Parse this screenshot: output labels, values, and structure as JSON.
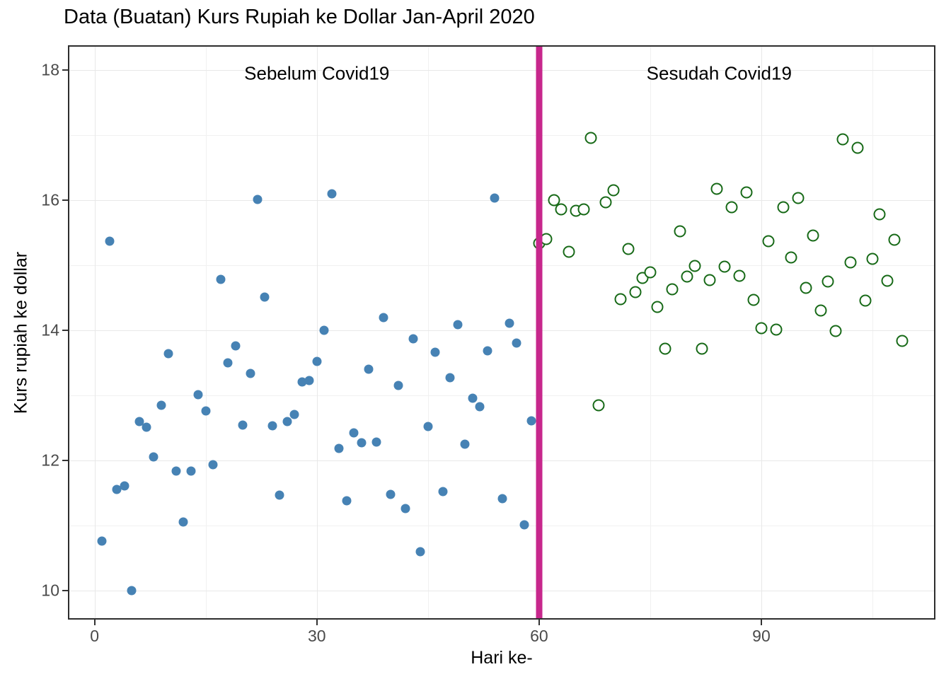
{
  "page": {
    "background": "#ffffff"
  },
  "chart_data": {
    "type": "scatter",
    "title": "Data (Buatan) Kurs Rupiah ke Dollar Jan-April 2020",
    "xlabel": "Hari ke-",
    "ylabel": "Kurs rupiah ke dollar",
    "xlim": [
      -3.6,
      113.5
    ],
    "ylim": [
      9.55,
      18.38
    ],
    "grid": "on",
    "legend": "none",
    "x_major_ticks": [
      0,
      30,
      60,
      90
    ],
    "x_minor_ticks": [
      15,
      45,
      75,
      105
    ],
    "y_major_ticks": [
      10,
      12,
      14,
      16,
      18
    ],
    "y_minor_ticks": [
      11,
      13,
      15,
      17
    ],
    "vline": {
      "x": 60,
      "color": "#C7278C"
    },
    "annotations": [
      {
        "text": "Sebelum Covid19",
        "x": 30,
        "y": 17.95
      },
      {
        "text": "Sesudah Covid19",
        "x": 84.3,
        "y": 17.95
      }
    ],
    "theme": {
      "panel_border": "#2d2d2d",
      "grid_major": "#e8e8e8",
      "grid_minor": "#f1f1f1",
      "tick_color": "#333333",
      "tick_label_color": "#4a4a4a",
      "sebelum_color": "#4682B4",
      "sesudah_color": "#186a18"
    },
    "series": [
      {
        "name": "Sebelum Covid19",
        "marker": "filled-circle",
        "color": "#4682B4",
        "x": [
          1,
          2,
          3,
          4,
          5,
          6,
          7,
          8,
          9,
          10,
          11,
          12,
          13,
          14,
          15,
          16,
          17,
          18,
          19,
          20,
          21,
          22,
          23,
          24,
          25,
          26,
          27,
          28,
          29,
          30,
          31,
          32,
          33,
          34,
          35,
          36,
          37,
          38,
          39,
          40,
          41,
          42,
          43,
          44,
          45,
          46,
          47,
          48,
          49,
          50,
          51,
          52,
          53,
          54,
          55,
          56,
          57,
          58,
          59
        ],
        "y": [
          10.76,
          15.37,
          11.55,
          11.61,
          10.0,
          12.59,
          12.51,
          12.05,
          12.84,
          13.64,
          11.83,
          11.05,
          11.83,
          13.01,
          12.76,
          11.93,
          14.78,
          13.5,
          13.76,
          12.54,
          13.33,
          16.01,
          14.51,
          12.53,
          11.46,
          12.59,
          12.7,
          13.2,
          13.23,
          13.52,
          14.0,
          16.1,
          12.18,
          11.38,
          12.42,
          12.27,
          13.4,
          12.28,
          14.19,
          11.48,
          13.15,
          11.26,
          13.87,
          10.59,
          12.52,
          13.66,
          11.52,
          13.27,
          14.09,
          12.25,
          12.95,
          12.82,
          13.68,
          16.03,
          11.41,
          14.11,
          13.8,
          11.01,
          12.61
        ]
      },
      {
        "name": "Sesudah Covid19",
        "marker": "open-circle",
        "color": "#186a18",
        "x": [
          60,
          61,
          62,
          63,
          64,
          65,
          66,
          67,
          68,
          69,
          70,
          71,
          72,
          73,
          74,
          75,
          76,
          77,
          78,
          79,
          80,
          81,
          82,
          83,
          84,
          85,
          86,
          87,
          88,
          89,
          90,
          91,
          92,
          93,
          94,
          95,
          96,
          97,
          98,
          99,
          100,
          101,
          102,
          103,
          104,
          105,
          106,
          107,
          108,
          109
        ],
        "y": [
          15.33,
          15.4,
          16.0,
          15.86,
          15.2,
          15.84,
          15.86,
          16.96,
          12.84,
          15.97,
          16.15,
          14.48,
          15.25,
          14.58,
          14.8,
          14.89,
          14.36,
          13.72,
          14.63,
          15.52,
          14.82,
          14.99,
          13.72,
          14.77,
          16.17,
          14.98,
          15.89,
          14.83,
          16.12,
          14.47,
          14.03,
          15.37,
          14.01,
          15.89,
          15.12,
          16.03,
          14.65,
          15.46,
          14.3,
          14.75,
          13.99,
          16.93,
          15.04,
          16.8,
          14.45,
          15.1,
          15.78,
          14.76,
          15.39,
          13.83
        ]
      }
    ]
  }
}
